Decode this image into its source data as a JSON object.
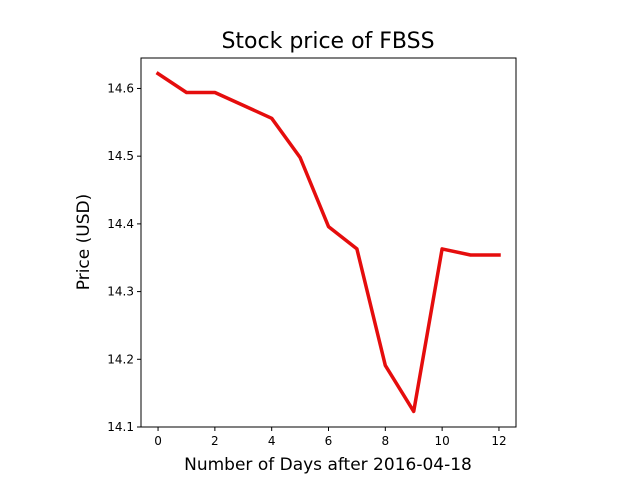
{
  "chart_data": {
    "type": "line",
    "title": "Stock price of FBSS",
    "xlabel": "Number of Days after 2016-04-18",
    "ylabel": "Price (USD)",
    "x": [
      0,
      1,
      2,
      3,
      4,
      5,
      6,
      7,
      8,
      9,
      10,
      11,
      12
    ],
    "series": [
      {
        "values": [
          14.622,
          14.594,
          14.594,
          14.575,
          14.556,
          14.498,
          14.396,
          14.363,
          14.191,
          14.123,
          14.363,
          14.354,
          14.354
        ],
        "color": "#e50d0d"
      }
    ],
    "xlim": [
      -0.6,
      12.6
    ],
    "ylim": [
      14.1,
      14.645
    ],
    "xticks": [
      0,
      2,
      4,
      6,
      8,
      10,
      12
    ],
    "yticks": [
      14.1,
      14.2,
      14.3,
      14.4,
      14.5,
      14.6
    ],
    "ytick_labels": [
      "14.1",
      "14.2",
      "14.3",
      "14.4",
      "14.5",
      "14.6"
    ],
    "grid": false,
    "legend": false
  }
}
